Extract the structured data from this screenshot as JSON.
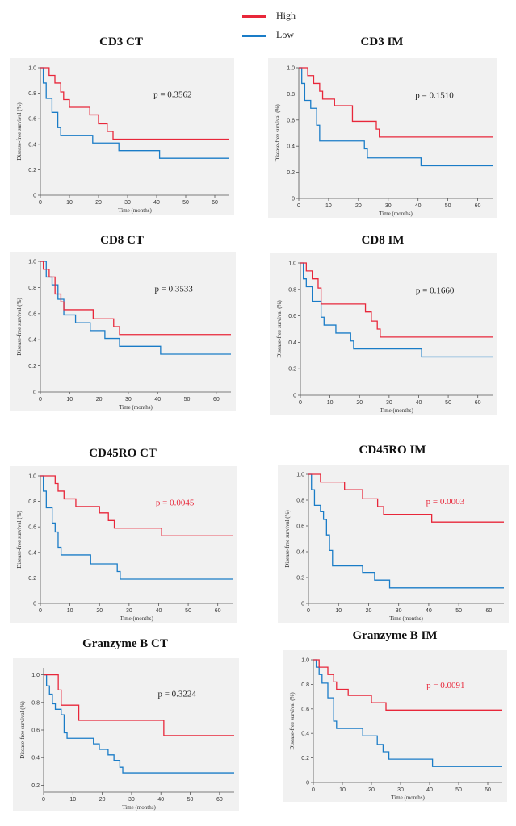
{
  "legend": {
    "items": [
      {
        "label": "High",
        "color": "#e8273a"
      },
      {
        "label": "Low",
        "color": "#1a7cc7"
      }
    ]
  },
  "common": {
    "xlabel": "Time (months)",
    "ylabel": "Disease-free survival (%)",
    "xticks": [
      0,
      10,
      20,
      30,
      40,
      50,
      60
    ],
    "xlim": [
      0,
      65
    ]
  },
  "chart_data": [
    {
      "type": "line",
      "title": "CD3 CT",
      "ylim": [
        0,
        1.0
      ],
      "yticks": [
        0,
        0.2,
        0.4,
        0.6,
        0.8,
        1.0
      ],
      "ytick_labels": [
        "0",
        "0.2",
        "0.4",
        "0.6",
        "0.8",
        "1.0"
      ],
      "p_value": "p = 0.3562",
      "p_color": "#222222",
      "series": [
        {
          "name": "High",
          "color": "#e8273a",
          "x": [
            0,
            3,
            5,
            7,
            8,
            10,
            17,
            20,
            23,
            25,
            27,
            65
          ],
          "y": [
            1.0,
            0.94,
            0.88,
            0.81,
            0.75,
            0.69,
            0.63,
            0.56,
            0.5,
            0.44,
            0.44,
            0.44
          ]
        },
        {
          "name": "Low",
          "color": "#1a7cc7",
          "x": [
            0,
            1,
            2,
            4,
            6,
            7,
            18,
            27,
            41,
            65
          ],
          "y": [
            1.0,
            0.88,
            0.76,
            0.65,
            0.53,
            0.47,
            0.41,
            0.35,
            0.29,
            0.29
          ]
        }
      ]
    },
    {
      "type": "line",
      "title": "CD3 IM",
      "ylim": [
        0,
        1.0
      ],
      "yticks": [
        0,
        0.2,
        0.4,
        0.6,
        0.8,
        1.0
      ],
      "ytick_labels": [
        "0",
        "0.2",
        "0.4",
        "0.6",
        "0.8",
        "1.0"
      ],
      "p_value": "p = 0.1510",
      "p_color": "#222222",
      "series": [
        {
          "name": "High",
          "color": "#e8273a",
          "x": [
            0,
            3,
            5,
            7,
            8,
            12,
            18,
            26,
            27,
            65
          ],
          "y": [
            1.0,
            0.94,
            0.88,
            0.82,
            0.76,
            0.71,
            0.59,
            0.53,
            0.47,
            0.47
          ]
        },
        {
          "name": "Low",
          "color": "#1a7cc7",
          "x": [
            0,
            1,
            2,
            4,
            6,
            7,
            22,
            23,
            41,
            65
          ],
          "y": [
            1.0,
            0.88,
            0.75,
            0.69,
            0.56,
            0.44,
            0.38,
            0.31,
            0.25,
            0.25
          ]
        }
      ]
    },
    {
      "type": "line",
      "title": "CD8 CT",
      "ylim": [
        0,
        1.0
      ],
      "yticks": [
        0,
        0.2,
        0.4,
        0.6,
        0.8,
        1.0
      ],
      "ytick_labels": [
        "0",
        "0.2",
        "0.4",
        "0.6",
        "0.8",
        "1.0"
      ],
      "p_value": "p = 0.3533",
      "p_color": "#222222",
      "series": [
        {
          "name": "High",
          "color": "#e8273a",
          "x": [
            0,
            1,
            3,
            5,
            7,
            8,
            18,
            25,
            27,
            65
          ],
          "y": [
            1.0,
            0.94,
            0.88,
            0.75,
            0.69,
            0.63,
            0.56,
            0.5,
            0.44,
            0.44
          ]
        },
        {
          "name": "Low",
          "color": "#1a7cc7",
          "x": [
            0,
            2,
            4,
            6,
            8,
            12,
            17,
            22,
            27,
            41,
            65
          ],
          "y": [
            1.0,
            0.88,
            0.82,
            0.71,
            0.59,
            0.53,
            0.47,
            0.41,
            0.35,
            0.29,
            0.29
          ]
        }
      ]
    },
    {
      "type": "line",
      "title": "CD8 IM",
      "ylim": [
        0,
        1.0
      ],
      "yticks": [
        0,
        0.2,
        0.4,
        0.6,
        0.8,
        1.0
      ],
      "ytick_labels": [
        "0",
        "0.2",
        "0.4",
        "0.6",
        "0.8",
        "1.0"
      ],
      "p_value": "p = 0.1660",
      "p_color": "#222222",
      "series": [
        {
          "name": "High",
          "color": "#e8273a",
          "x": [
            0,
            2,
            4,
            6,
            7,
            22,
            24,
            26,
            27,
            65
          ],
          "y": [
            1.0,
            0.94,
            0.88,
            0.81,
            0.69,
            0.63,
            0.56,
            0.5,
            0.44,
            0.44
          ]
        },
        {
          "name": "Low",
          "color": "#1a7cc7",
          "x": [
            0,
            1,
            2,
            4,
            7,
            8,
            12,
            17,
            18,
            41,
            65
          ],
          "y": [
            1.0,
            0.88,
            0.82,
            0.71,
            0.59,
            0.53,
            0.47,
            0.41,
            0.35,
            0.29,
            0.29
          ]
        }
      ]
    },
    {
      "type": "line",
      "title": "CD45RO CT",
      "ylim": [
        0,
        1.0
      ],
      "yticks": [
        0,
        0.2,
        0.4,
        0.6,
        0.8,
        1.0
      ],
      "ytick_labels": [
        "0",
        "0.2",
        "0.4",
        "0.6",
        "0.8",
        "1.0"
      ],
      "p_value": "p = 0.0045",
      "p_color": "#e8273a",
      "series": [
        {
          "name": "High",
          "color": "#e8273a",
          "x": [
            0,
            5,
            6,
            8,
            12,
            20,
            23,
            25,
            26,
            41,
            65
          ],
          "y": [
            1.0,
            0.94,
            0.88,
            0.82,
            0.76,
            0.71,
            0.65,
            0.59,
            0.59,
            0.53,
            0.53
          ]
        },
        {
          "name": "Low",
          "color": "#1a7cc7",
          "x": [
            0,
            1,
            2,
            4,
            5,
            6,
            7,
            17,
            26,
            27,
            65
          ],
          "y": [
            1.0,
            0.88,
            0.75,
            0.63,
            0.56,
            0.44,
            0.38,
            0.31,
            0.25,
            0.19,
            0.19
          ]
        }
      ]
    },
    {
      "type": "line",
      "title": "CD45RO IM",
      "ylim": [
        0,
        1.0
      ],
      "yticks": [
        0,
        0.2,
        0.4,
        0.6,
        0.8,
        1.0
      ],
      "ytick_labels": [
        "0",
        "0.2",
        "0.4",
        "0.6",
        "0.8",
        "1.0"
      ],
      "p_value": "p = 0.0003",
      "p_color": "#e8273a",
      "series": [
        {
          "name": "High",
          "color": "#e8273a",
          "x": [
            0,
            4,
            12,
            18,
            23,
            25,
            27,
            41,
            65
          ],
          "y": [
            1.0,
            0.94,
            0.88,
            0.81,
            0.75,
            0.69,
            0.69,
            0.63,
            0.63
          ]
        },
        {
          "name": "Low",
          "color": "#1a7cc7",
          "x": [
            0,
            1,
            2,
            4,
            5,
            6,
            7,
            8,
            18,
            22,
            27,
            65
          ],
          "y": [
            1.0,
            0.88,
            0.76,
            0.71,
            0.65,
            0.53,
            0.41,
            0.29,
            0.24,
            0.18,
            0.12,
            0.12
          ]
        }
      ]
    },
    {
      "type": "line",
      "title": "Granzyme B CT",
      "ylim": [
        0.15,
        1.05
      ],
      "yticks": [
        0.2,
        0.4,
        0.6,
        0.8,
        1.0
      ],
      "ytick_labels": [
        "0.2",
        "0.4",
        "0.6",
        "0.8",
        "1.0"
      ],
      "p_value": "p = 0.3224",
      "p_color": "#222222",
      "series": [
        {
          "name": "High",
          "color": "#e8273a",
          "x": [
            0,
            5,
            6,
            12,
            41,
            65
          ],
          "y": [
            1.0,
            0.89,
            0.78,
            0.67,
            0.56,
            0.56
          ]
        },
        {
          "name": "Low",
          "color": "#1a7cc7",
          "x": [
            0,
            1,
            2,
            3,
            4,
            6,
            7,
            8,
            17,
            19,
            22,
            24,
            26,
            27,
            65
          ],
          "y": [
            1.0,
            0.92,
            0.86,
            0.79,
            0.75,
            0.71,
            0.58,
            0.54,
            0.5,
            0.46,
            0.42,
            0.38,
            0.33,
            0.29,
            0.29
          ]
        }
      ]
    },
    {
      "type": "line",
      "title": "Granzyme B IM",
      "ylim": [
        0,
        1.0
      ],
      "yticks": [
        0,
        0.2,
        0.4,
        0.6,
        0.8,
        1.0
      ],
      "ytick_labels": [
        "0",
        "0.2",
        "0.4",
        "0.6",
        "0.8",
        "1.0"
      ],
      "p_value": "p = 0.0091",
      "p_color": "#e8273a",
      "series": [
        {
          "name": "High",
          "color": "#e8273a",
          "x": [
            0,
            2,
            5,
            7,
            8,
            12,
            20,
            23,
            25,
            27,
            65
          ],
          "y": [
            1.0,
            0.94,
            0.88,
            0.82,
            0.76,
            0.71,
            0.65,
            0.65,
            0.59,
            0.59,
            0.59
          ]
        },
        {
          "name": "Low",
          "color": "#1a7cc7",
          "x": [
            0,
            1,
            2,
            3,
            5,
            7,
            8,
            17,
            22,
            24,
            26,
            41,
            65
          ],
          "y": [
            1.0,
            0.94,
            0.88,
            0.81,
            0.69,
            0.5,
            0.44,
            0.38,
            0.31,
            0.25,
            0.19,
            0.13,
            0.13
          ]
        }
      ]
    }
  ]
}
